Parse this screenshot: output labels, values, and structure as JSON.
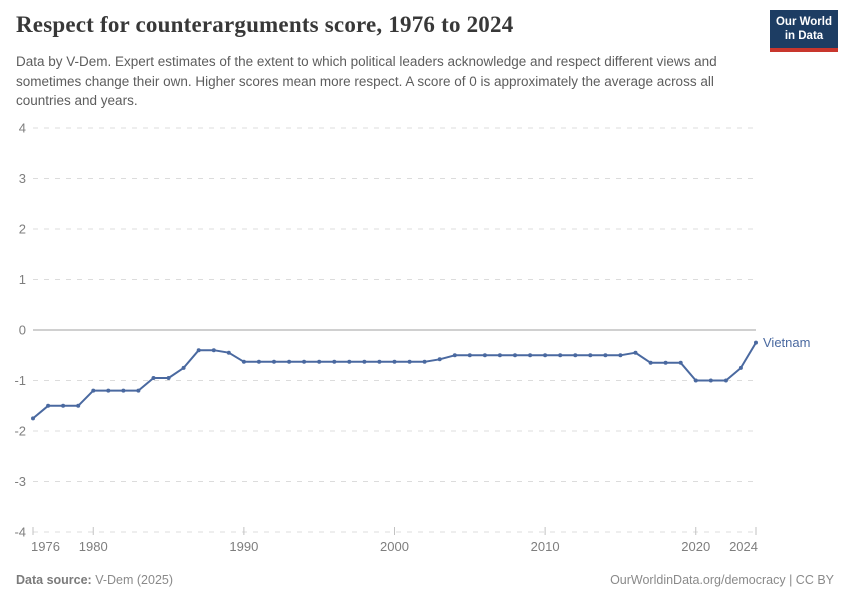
{
  "header": {
    "title": "Respect for counterarguments score, 1976 to 2024",
    "subtitle": "Data by V-Dem. Expert estimates of the extent to which political leaders acknowledge and respect different views and sometimes change their own. Higher scores mean more respect. A score of 0 is approximately the average across all countries and years.",
    "logo": {
      "line1": "Our World",
      "line2": "in Data",
      "bg_color": "#1d3d63",
      "accent_color": "#c8362d"
    }
  },
  "footer": {
    "source_label": "Data source:",
    "source_value": " V-Dem (2025)",
    "right_text": "OurWorldinData.org/democracy | CC BY"
  },
  "chart_data": {
    "type": "line",
    "title": "Respect for counterarguments score, 1976 to 2024",
    "x": [
      1976,
      1977,
      1978,
      1979,
      1980,
      1981,
      1982,
      1983,
      1984,
      1985,
      1986,
      1987,
      1988,
      1989,
      1990,
      1991,
      1992,
      1993,
      1994,
      1995,
      1996,
      1997,
      1998,
      1999,
      2000,
      2001,
      2002,
      2003,
      2004,
      2005,
      2006,
      2007,
      2008,
      2009,
      2010,
      2011,
      2012,
      2013,
      2014,
      2015,
      2016,
      2017,
      2018,
      2019,
      2020,
      2021,
      2022,
      2023,
      2024
    ],
    "series": [
      {
        "name": "Vietnam",
        "color": "#4a69a0",
        "values": [
          -1.75,
          -1.5,
          -1.5,
          -1.5,
          -1.2,
          -1.2,
          -1.2,
          -1.2,
          -0.95,
          -0.95,
          -0.75,
          -0.4,
          -0.4,
          -0.45,
          -0.63,
          -0.63,
          -0.63,
          -0.63,
          -0.63,
          -0.63,
          -0.63,
          -0.63,
          -0.63,
          -0.63,
          -0.63,
          -0.63,
          -0.63,
          -0.58,
          -0.5,
          -0.5,
          -0.5,
          -0.5,
          -0.5,
          -0.5,
          -0.5,
          -0.5,
          -0.5,
          -0.5,
          -0.5,
          -0.5,
          -0.45,
          -0.65,
          -0.65,
          -0.65,
          -1.0,
          -1.0,
          -1.0,
          -0.75,
          -0.25
        ]
      }
    ],
    "xlabel": "",
    "ylabel": "",
    "ylim": [
      -4,
      4
    ],
    "xlim": [
      1976,
      2024
    ],
    "y_ticks": [
      4,
      3,
      2,
      1,
      0,
      -1,
      -2,
      -3,
      -4
    ],
    "x_ticks": [
      1976,
      1980,
      1990,
      2000,
      2010,
      2020,
      2024
    ],
    "grid": true,
    "legend_position": "end-of-line-label",
    "gridline_color": "#dcdcdc",
    "zero_line_color": "#a1a1a1",
    "axis_text_color": "#7e7e7e",
    "tick_mark_color": "#c2c2c2"
  }
}
